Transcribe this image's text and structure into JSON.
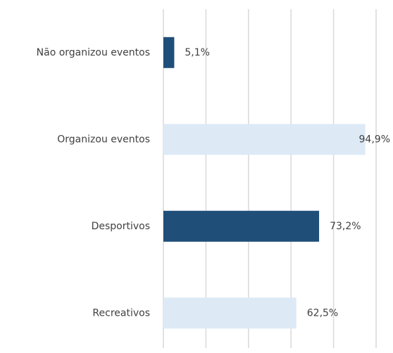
{
  "chart_data": {
    "type": "barh",
    "categories": [
      "Não organizou eventos",
      "Organizou eventos",
      "Desportivos",
      "Recreativos"
    ],
    "values": [
      5.1,
      94.9,
      73.2,
      62.5
    ],
    "value_labels": [
      "5,1%",
      "94,9%",
      "73,2%",
      "62,5%"
    ],
    "colors": [
      "#1f4e79",
      "#ddeaf6",
      "#1f4e79",
      "#ddeaf6"
    ],
    "xlim": [
      0,
      100
    ],
    "xticks": [
      0,
      20,
      40,
      60,
      80,
      100
    ],
    "grid": true
  }
}
